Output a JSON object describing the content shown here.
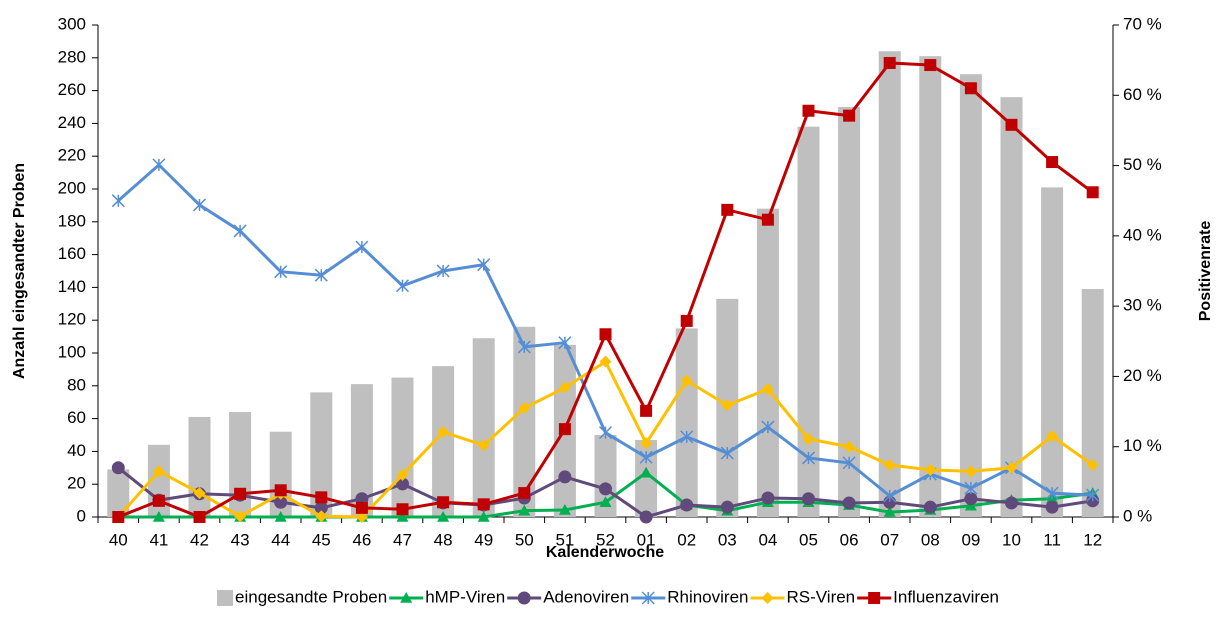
{
  "chart_data": {
    "type": "combo",
    "x_label": "Kalenderwoche",
    "y_label": "Anzahl eingesandter Proben",
    "y2_label": "Positivenrate",
    "categories": [
      "40",
      "41",
      "42",
      "43",
      "44",
      "45",
      "46",
      "47",
      "48",
      "49",
      "50",
      "51",
      "52",
      "01",
      "02",
      "03",
      "04",
      "05",
      "06",
      "07",
      "08",
      "09",
      "10",
      "11",
      "12"
    ],
    "ylim": [
      0,
      300
    ],
    "yticks": [
      0,
      20,
      40,
      60,
      80,
      100,
      120,
      140,
      160,
      180,
      200,
      220,
      240,
      260,
      280,
      300
    ],
    "y2lim": [
      0,
      70
    ],
    "y2ticks": [
      {
        "value": 0,
        "label": "0 %"
      },
      {
        "value": 10,
        "label": "10 %"
      },
      {
        "value": 20,
        "label": "20 %"
      },
      {
        "value": 30,
        "label": "30 %"
      },
      {
        "value": 40,
        "label": "40 %"
      },
      {
        "value": 50,
        "label": "50 %"
      },
      {
        "value": 60,
        "label": "60 %"
      },
      {
        "value": 70,
        "label": "70 %"
      }
    ],
    "legend": "bottom",
    "series": [
      {
        "name": "eingesandte Proben",
        "type": "bar",
        "color": "#bfbfbf",
        "values": [
          29,
          44,
          61,
          64,
          52,
          76,
          81,
          85,
          92,
          109,
          116,
          105,
          50,
          47,
          115,
          133,
          188,
          238,
          250,
          284,
          281,
          270,
          256,
          201,
          139
        ]
      },
      {
        "name": "hMP-Viren",
        "type": "line",
        "axis": "y2",
        "marker": "triangle",
        "color": "#00b050",
        "values": [
          0,
          0,
          0,
          0,
          0,
          0,
          0,
          0,
          0,
          0,
          0.9,
          1.0,
          2.1,
          6.3,
          1.7,
          0.9,
          2.1,
          2.1,
          1.7,
          0.7,
          1.0,
          1.6,
          2.4,
          2.6,
          3.4
        ]
      },
      {
        "name": "Adenoviren",
        "type": "line",
        "axis": "y2",
        "marker": "circle",
        "color": "#604a7b",
        "values": [
          7.0,
          2.4,
          3.3,
          3.1,
          2.1,
          1.3,
          2.6,
          4.7,
          2.0,
          1.7,
          2.7,
          5.7,
          4.0,
          0,
          1.7,
          1.4,
          2.7,
          2.6,
          2.0,
          2.1,
          1.4,
          2.6,
          2.0,
          1.4,
          2.3
        ]
      },
      {
        "name": "Rhinoviren",
        "type": "line",
        "axis": "y2",
        "marker": "asterisk",
        "color": "#558ed5",
        "values": [
          45.0,
          50.1,
          44.4,
          40.7,
          34.9,
          34.4,
          38.4,
          32.9,
          35.0,
          35.9,
          24.2,
          24.8,
          12.0,
          8.5,
          11.4,
          9.1,
          12.8,
          8.4,
          7.7,
          3.0,
          6.1,
          4.1,
          7.0,
          3.4,
          3.1
        ]
      },
      {
        "name": "RS-Viren",
        "type": "line",
        "axis": "y2",
        "marker": "diamond",
        "color": "#ffc000",
        "values": [
          0,
          6.5,
          3.4,
          0.1,
          3.3,
          0.1,
          0,
          6.0,
          12.1,
          10.2,
          15.5,
          18.4,
          22.1,
          10.5,
          19.4,
          15.9,
          18.2,
          11.1,
          10.0,
          7.4,
          6.7,
          6.5,
          7.0,
          11.5,
          7.4
        ]
      },
      {
        "name": "Influenzaviren",
        "type": "line",
        "axis": "y2",
        "marker": "square",
        "color": "#c00000",
        "values": [
          0,
          2.3,
          0,
          3.3,
          3.8,
          2.8,
          1.3,
          1.1,
          2.1,
          1.8,
          3.4,
          12.5,
          26.0,
          15.1,
          27.9,
          43.7,
          42.3,
          57.8,
          57.1,
          64.6,
          64.3,
          61.0,
          55.8,
          50.5,
          46.2
        ]
      }
    ]
  }
}
